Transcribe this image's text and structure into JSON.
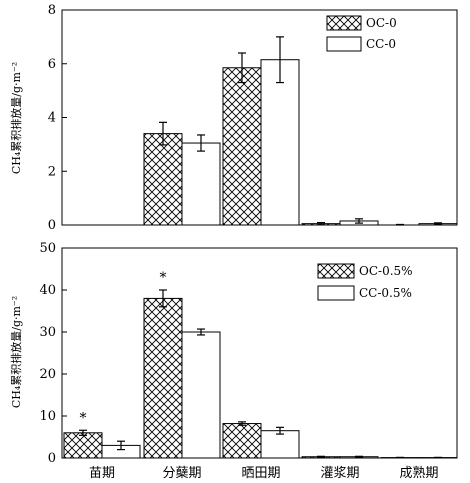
{
  "chart_data": [
    {
      "type": "bar",
      "title": "",
      "xlabel": "",
      "ylabel": "CH₄累积排放量/g·m⁻²",
      "ylim": [
        0,
        8
      ],
      "yticks": [
        0,
        2,
        4,
        6,
        8
      ],
      "categories": [
        "苗期",
        "分蘖期",
        "晒田期",
        "灌浆期",
        "成熟期"
      ],
      "legend_position": "top-right",
      "series": [
        {
          "name": "OC-0",
          "pattern": "crosshatch",
          "color": "#000000",
          "values": [
            0,
            3.4,
            5.85,
            0.05,
            0.0
          ],
          "errors": [
            0,
            0.42,
            0.55,
            0.04,
            0.02
          ]
        },
        {
          "name": "CC-0",
          "pattern": "white",
          "color": "#000000",
          "values": [
            0,
            3.05,
            6.15,
            0.15,
            0.05
          ],
          "errors": [
            0,
            0.3,
            0.85,
            0.08,
            0.03
          ]
        }
      ],
      "annotations": []
    },
    {
      "type": "bar",
      "title": "",
      "xlabel": "",
      "ylabel": "CH₄累积排放量/g·m⁻²",
      "ylim": [
        0,
        50
      ],
      "yticks": [
        0,
        10,
        20,
        30,
        40,
        50
      ],
      "categories": [
        "苗期",
        "分蘖期",
        "晒田期",
        "灌浆期",
        "成熟期"
      ],
      "legend_position": "top-right",
      "series": [
        {
          "name": "OC-0.5%",
          "pattern": "crosshatch",
          "color": "#000000",
          "values": [
            6.0,
            38.0,
            8.2,
            0.3,
            0.1
          ],
          "errors": [
            0.6,
            2.0,
            0.4,
            0.1,
            0.05
          ]
        },
        {
          "name": "CC-0.5%",
          "pattern": "white",
          "color": "#000000",
          "values": [
            3.0,
            30.0,
            6.5,
            0.3,
            0.1
          ],
          "errors": [
            1.0,
            0.7,
            0.8,
            0.1,
            0.05
          ]
        }
      ],
      "annotations": [
        {
          "category": "苗期",
          "text": "*"
        },
        {
          "category": "分蘖期",
          "text": "*"
        }
      ]
    }
  ]
}
